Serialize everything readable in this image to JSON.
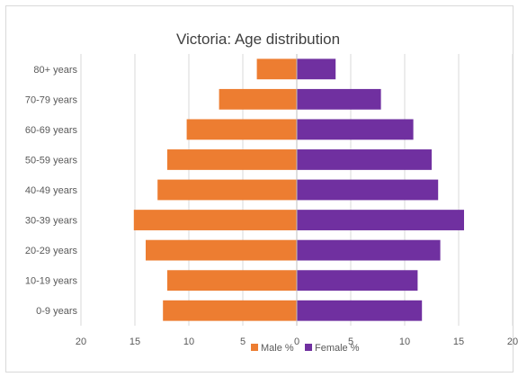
{
  "chart_data": {
    "type": "bar",
    "orientation": "horizontal",
    "layout": "population-pyramid",
    "title": "Victoria: Age distribution",
    "categories": [
      "80+ years",
      "70-79 years",
      "60-69 years",
      "50-59 years",
      "40-49 years",
      "30-39 years",
      "20-29 years",
      "10-19 years",
      "0-9 years"
    ],
    "series": [
      {
        "name": "Male %",
        "side": "left",
        "color": "#ED7D31",
        "values": [
          3.7,
          7.2,
          10.2,
          12.0,
          12.9,
          15.1,
          14.0,
          12.0,
          12.4
        ]
      },
      {
        "name": "Female %",
        "side": "right",
        "color": "#7030A0",
        "values": [
          3.6,
          7.8,
          10.8,
          12.5,
          13.1,
          15.5,
          13.3,
          11.2,
          11.6
        ]
      }
    ],
    "xlim": [
      -20,
      20
    ],
    "x_ticks": [
      -20,
      -15,
      -10,
      -5,
      0,
      5,
      10,
      15,
      20
    ],
    "x_tick_labels": [
      "20",
      "15",
      "10",
      "5",
      "0",
      "5",
      "10",
      "15",
      "20"
    ],
    "grid": true,
    "legend": "bottom"
  }
}
